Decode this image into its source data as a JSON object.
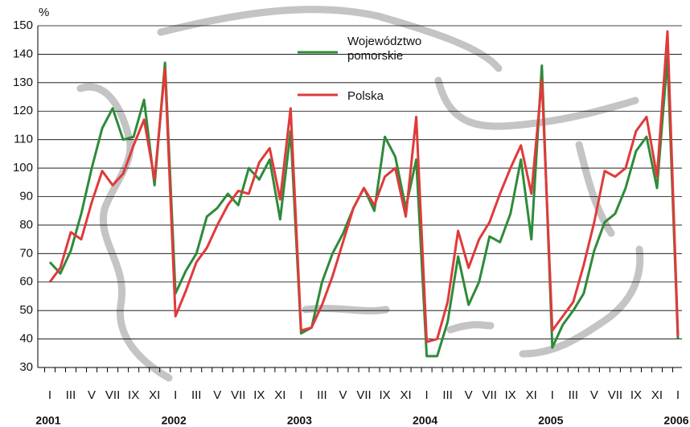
{
  "chart_data": {
    "type": "line",
    "y_unit_label": "%",
    "categories": [
      "I",
      null,
      "III",
      null,
      "V",
      null,
      "VII",
      null,
      "IX",
      null,
      "XI",
      null,
      "I",
      null,
      "III",
      null,
      "V",
      null,
      "VII",
      null,
      "IX",
      null,
      "XI",
      null,
      "I",
      null,
      "III",
      null,
      "V",
      null,
      "VII",
      null,
      "IX",
      null,
      "XI",
      null,
      "I",
      null,
      "III",
      null,
      "V",
      null,
      "VII",
      null,
      "IX",
      null,
      "XI",
      null,
      "I",
      null,
      "III",
      null,
      "V",
      null,
      "VII",
      null,
      "IX",
      null,
      "XI",
      null,
      "I"
    ],
    "year_labels": [
      "2001",
      "2002",
      "2003",
      "2004",
      "2005",
      "2006"
    ],
    "series": [
      {
        "name": "Województwo pomorskie",
        "color": "#2e8b3a",
        "values": [
          67,
          63,
          71,
          84,
          100,
          114,
          121,
          110,
          111,
          124,
          94,
          137,
          56,
          64,
          70,
          83,
          86,
          91,
          87,
          100,
          96,
          103,
          82,
          113,
          42,
          44,
          60,
          70,
          77,
          86,
          93,
          85,
          111,
          104,
          86,
          103,
          34,
          34,
          46,
          69,
          52,
          60,
          76,
          74,
          84,
          103,
          75,
          136,
          37,
          45,
          50,
          56,
          71,
          81,
          84,
          93,
          106,
          111,
          93,
          139,
          40
        ]
      },
      {
        "name": "Polska",
        "color": "#e03a3a",
        "values": [
          60,
          65,
          77.5,
          75,
          88,
          99,
          94,
          98,
          108,
          117,
          96,
          135,
          48,
          57,
          67,
          72,
          80,
          87,
          92,
          91,
          102,
          107,
          89,
          121,
          43,
          44,
          52,
          62,
          74,
          86,
          93,
          87,
          97,
          100,
          83,
          118,
          39,
          40,
          53,
          78,
          65,
          75,
          81,
          91,
          100,
          108,
          91,
          131,
          43,
          48,
          53,
          66,
          81,
          99,
          97,
          100,
          113,
          118,
          97,
          148,
          41
        ]
      }
    ],
    "ylim": [
      30,
      150
    ],
    "yticks": [
      30,
      40,
      50,
      60,
      70,
      80,
      90,
      100,
      110,
      120,
      130,
      140,
      150
    ],
    "grid": true
  }
}
